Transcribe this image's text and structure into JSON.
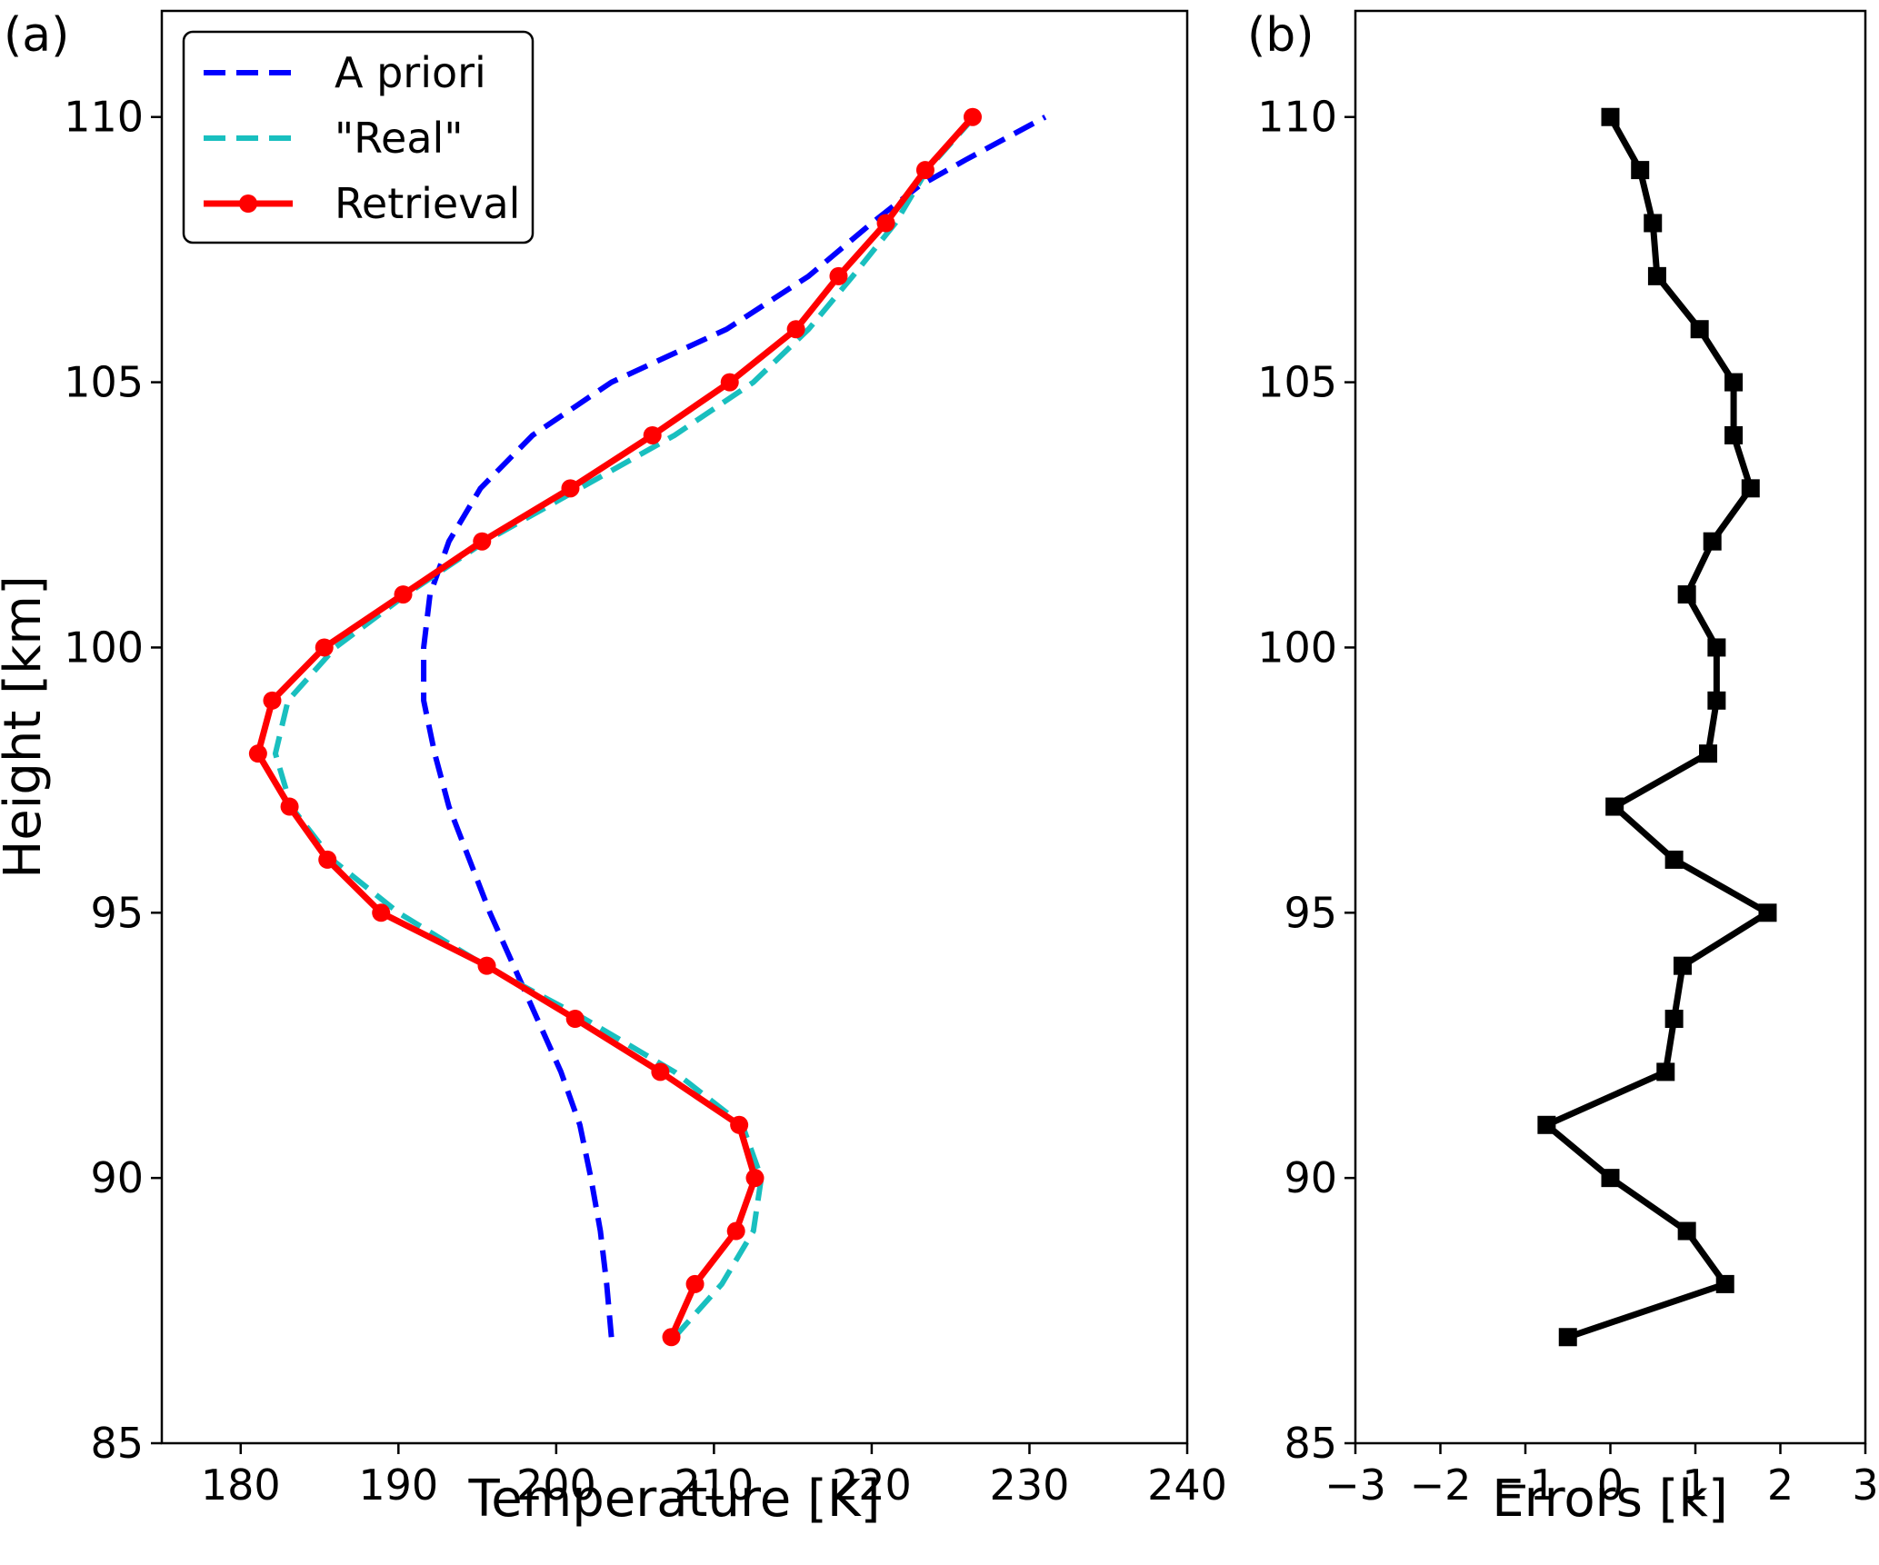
{
  "chart_data": [
    {
      "type": "line",
      "panel_label": "(a)",
      "xlabel": "Temperature [K]",
      "ylabel": "Height [km]",
      "xlim": [
        175,
        240
      ],
      "ylim": [
        85,
        112
      ],
      "xticks": [
        "180",
        "190",
        "200",
        "210",
        "220",
        "230",
        "240"
      ],
      "yticks": [
        "85",
        "90",
        "95",
        "100",
        "105",
        "110"
      ],
      "legend_position": "top-left",
      "series": [
        {
          "name": "A priori",
          "color": "#0000ff",
          "style": "dashed",
          "marker": "none",
          "points": [
            [
              203.5,
              87
            ],
            [
              203.2,
              88
            ],
            [
              202.8,
              89
            ],
            [
              202.2,
              90
            ],
            [
              201.5,
              91
            ],
            [
              200.3,
              92
            ],
            [
              198.8,
              93
            ],
            [
              197.3,
              94
            ],
            [
              195.8,
              95
            ],
            [
              194.5,
              96
            ],
            [
              193.2,
              97
            ],
            [
              192.3,
              98
            ],
            [
              191.6,
              99
            ],
            [
              191.6,
              100
            ],
            [
              192.0,
              101
            ],
            [
              193.2,
              102
            ],
            [
              195.2,
              103
            ],
            [
              198.5,
              104
            ],
            [
              203.5,
              105
            ],
            [
              210.8,
              106
            ],
            [
              216.0,
              107
            ],
            [
              220.0,
              108
            ],
            [
              223.0,
              108.7
            ],
            [
              226.0,
              109.2
            ],
            [
              231.0,
              110
            ]
          ]
        },
        {
          "name": "\"Real\"",
          "color": "#19bfbf",
          "style": "dashed",
          "marker": "none",
          "points": [
            [
              207.5,
              87
            ],
            [
              210.5,
              88
            ],
            [
              212.5,
              89
            ],
            [
              213.0,
              90
            ],
            [
              211.8,
              91
            ],
            [
              207.5,
              92
            ],
            [
              201.8,
              93
            ],
            [
              195.5,
              94
            ],
            [
              190.0,
              95
            ],
            [
              185.8,
              96
            ],
            [
              183.2,
              97
            ],
            [
              182.2,
              98
            ],
            [
              183.0,
              99
            ],
            [
              186.0,
              100
            ],
            [
              190.5,
              101
            ],
            [
              195.5,
              102
            ],
            [
              201.5,
              103
            ],
            [
              207.5,
              104
            ],
            [
              212.5,
              105
            ],
            [
              216.0,
              106
            ],
            [
              218.8,
              107
            ],
            [
              221.5,
              108
            ],
            [
              223.5,
              109
            ],
            [
              226.5,
              110
            ]
          ]
        },
        {
          "name": "Retrieval",
          "color": "#ff0000",
          "style": "solid",
          "marker": "circle",
          "points": [
            [
              207.3,
              87
            ],
            [
              208.8,
              88
            ],
            [
              211.4,
              89
            ],
            [
              212.6,
              90
            ],
            [
              211.6,
              91
            ],
            [
              206.6,
              92
            ],
            [
              201.2,
              93
            ],
            [
              195.6,
              94
            ],
            [
              188.9,
              95
            ],
            [
              185.5,
              96
            ],
            [
              183.1,
              97
            ],
            [
              181.1,
              98
            ],
            [
              182.0,
              99
            ],
            [
              185.3,
              100
            ],
            [
              190.3,
              101
            ],
            [
              195.3,
              102
            ],
            [
              200.9,
              103
            ],
            [
              206.1,
              104
            ],
            [
              211.0,
              105
            ],
            [
              215.2,
              106
            ],
            [
              217.9,
              107
            ],
            [
              220.9,
              108
            ],
            [
              223.4,
              109
            ],
            [
              226.4,
              110
            ]
          ]
        }
      ]
    },
    {
      "type": "line",
      "panel_label": "(b)",
      "xlabel": "Errors [k]",
      "xlim": [
        -3,
        3
      ],
      "ylim": [
        85,
        112
      ],
      "xticks": [
        "−3",
        "−2",
        "−1",
        "0",
        "1",
        "2",
        "3"
      ],
      "yticks": [
        "85",
        "90",
        "95",
        "100",
        "105",
        "110"
      ],
      "series": [
        {
          "color": "#000000",
          "style": "solid",
          "marker": "square",
          "points": [
            [
              -0.5,
              87
            ],
            [
              1.35,
              88
            ],
            [
              0.9,
              89
            ],
            [
              0.0,
              90
            ],
            [
              -0.75,
              91
            ],
            [
              0.65,
              92
            ],
            [
              0.75,
              93
            ],
            [
              0.85,
              94
            ],
            [
              1.85,
              95
            ],
            [
              0.75,
              96
            ],
            [
              0.05,
              97
            ],
            [
              1.15,
              98
            ],
            [
              1.25,
              99
            ],
            [
              1.25,
              100
            ],
            [
              0.9,
              101
            ],
            [
              1.2,
              102
            ],
            [
              1.65,
              103
            ],
            [
              1.45,
              104
            ],
            [
              1.45,
              105
            ],
            [
              1.05,
              106
            ],
            [
              0.55,
              107
            ],
            [
              0.5,
              108
            ],
            [
              0.35,
              109
            ],
            [
              0.0,
              110
            ]
          ]
        }
      ]
    }
  ]
}
